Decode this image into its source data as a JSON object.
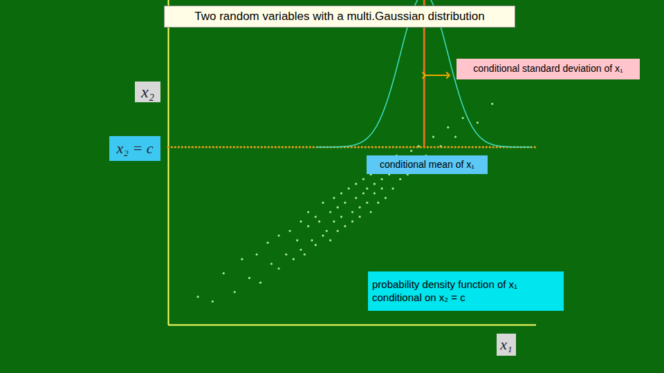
{
  "chart_data": {
    "type": "scatter",
    "title": "Two random variables with a multi.Gaussian distribution",
    "x_label": "x₁",
    "y_label": "x₂",
    "xlim": [
      0,
      100
    ],
    "ylim": [
      0,
      138
    ],
    "tick_labels": false,
    "color": "#a6e89c",
    "x": [
      8,
      12,
      15,
      18,
      20,
      22,
      24,
      25,
      27,
      28,
      30,
      30,
      32,
      33,
      34,
      35,
      36,
      36,
      37,
      38,
      38,
      39,
      40,
      40,
      41,
      42,
      42,
      43,
      44,
      44,
      45,
      45,
      46,
      46,
      47,
      47,
      48,
      48,
      49,
      50,
      50,
      51,
      51,
      52,
      52,
      53,
      53,
      54,
      54,
      55,
      55,
      56,
      56,
      57,
      57,
      58,
      58,
      59,
      60,
      60,
      61,
      62,
      62,
      63,
      64,
      65,
      66,
      67,
      68,
      70,
      72,
      74,
      76,
      78,
      80,
      84,
      88
    ],
    "y": [
      12,
      10,
      22,
      14,
      28,
      20,
      30,
      18,
      35,
      26,
      24,
      38,
      30,
      40,
      28,
      36,
      44,
      32,
      30,
      42,
      48,
      36,
      34,
      46,
      44,
      38,
      52,
      40,
      48,
      36,
      54,
      44,
      40,
      50,
      56,
      46,
      42,
      52,
      58,
      48,
      44,
      54,
      60,
      50,
      46,
      56,
      62,
      52,
      58,
      48,
      64,
      56,
      60,
      52,
      66,
      58,
      62,
      54,
      64,
      68,
      58,
      66,
      72,
      62,
      70,
      64,
      74,
      68,
      76,
      72,
      80,
      76,
      84,
      80,
      88,
      86,
      94
    ],
    "condition": {
      "label": "x₂ = c",
      "value": 75.6
    },
    "conditional_density": {
      "mean": 69.5,
      "sd": 6.5,
      "peak": 65
    },
    "annotations": {
      "sd_label": "conditional standard deviation of x₁",
      "mean_label": "conditional mean of x₁",
      "density_label": [
        "probability density function of x₁",
        "conditional on x₂ = c"
      ]
    }
  }
}
